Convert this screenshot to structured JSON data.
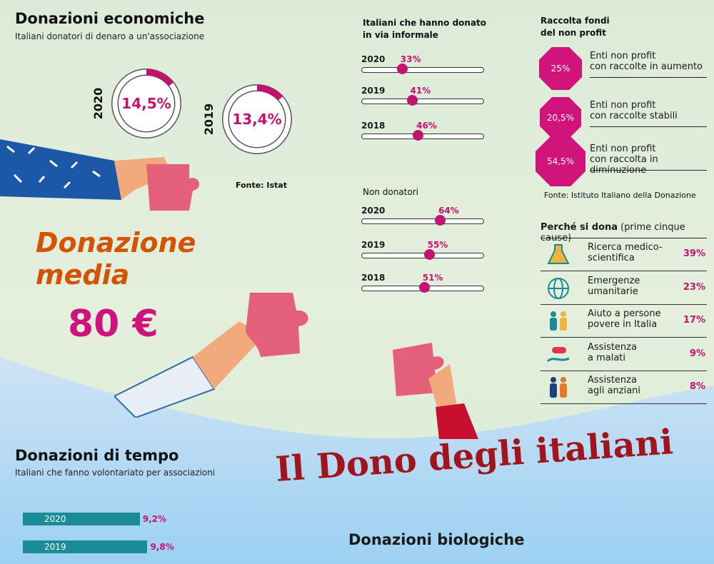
{
  "headline": "Il Dono degli italiani",
  "economic": {
    "title": "Donazioni economiche",
    "subtitle": "Italiani donatori di denaro a un'associazione",
    "source": "Fonte: Istat"
  },
  "average_donation": {
    "label_line1": "Donazione",
    "label_line2": "media",
    "value": "80 €"
  },
  "time": {
    "title": "Donazioni di tempo",
    "subtitle": "Italiani che fanno volontariato per associazioni"
  },
  "bio": {
    "title": "Donazioni biologiche"
  },
  "informal": {
    "title_line1": "Italiani che hanno donato",
    "title_line2": "in via informale",
    "non_donors_title": "Non donatori"
  },
  "nonprofit": {
    "title_line1": "Raccolta fondi",
    "title_line2": "del non profit",
    "source": "Fonte: Istituto Italiano della Donazione"
  },
  "causes": {
    "title_bold": "Perché si dona",
    "title_rest": " (prime cinque cause)"
  },
  "chart_data": [
    {
      "type": "pie",
      "title": "Donazioni economiche",
      "categories": [
        "2020",
        "2019"
      ],
      "values": [
        14.5,
        13.4
      ],
      "value_labels": [
        "14,5%",
        "13,4%"
      ],
      "unit": "%"
    },
    {
      "type": "scatter",
      "title": "Italiani che hanno donato in via informale",
      "categories": [
        "2020",
        "2019",
        "2018"
      ],
      "values": [
        33,
        41,
        46
      ],
      "value_labels": [
        "33%",
        "41%",
        "46%"
      ],
      "ylim": [
        0,
        100
      ]
    },
    {
      "type": "scatter",
      "title": "Non donatori",
      "categories": [
        "2020",
        "2019",
        "2018"
      ],
      "values": [
        64,
        55,
        51
      ],
      "value_labels": [
        "64%",
        "55%",
        "51%"
      ],
      "ylim": [
        0,
        100
      ]
    },
    {
      "type": "bar",
      "title": "Raccolta fondi del non profit",
      "categories": [
        "Enti non profit con raccolte in aumento",
        "Enti non profit con raccolte stabili",
        "Enti non profit con raccolta in diminuzione"
      ],
      "label_line1": [
        "Enti non profit",
        "Enti non profit",
        "Enti non profit"
      ],
      "label_line2": [
        "con raccolte in aumento",
        "con raccolte stabili",
        "con raccolta in diminuzione"
      ],
      "values": [
        25,
        20.5,
        54.5
      ],
      "value_labels": [
        "25%",
        "20,5%",
        "54,5%"
      ]
    },
    {
      "type": "table",
      "title": "Perché si dona (prime cinque cause)",
      "categories": [
        "Ricerca medico-scientifica",
        "Emergenze umanitarie",
        "Aiuto a persone povere in Italia",
        "Assistenza a malati",
        "Assistenza agli anziani"
      ],
      "label_line1": [
        "Ricerca medico-",
        "Emergenze",
        "Aiuto a persone",
        "Assistenza",
        "Assistenza"
      ],
      "label_line2": [
        "scientifica",
        "umanitarie",
        "povere in Italia",
        "a malati",
        "agli anziani"
      ],
      "icons": [
        "flask-icon",
        "globe-icon",
        "family-icon",
        "pill-hand-icon",
        "elderly-icon"
      ],
      "values": [
        39,
        23,
        17,
        9,
        8
      ],
      "value_labels": [
        "39%",
        "23%",
        "17%",
        "9%",
        "8%"
      ]
    },
    {
      "type": "bar",
      "title": "Donazioni di tempo",
      "categories": [
        "2020",
        "2019"
      ],
      "values": [
        9.2,
        9.8
      ],
      "value_labels": [
        "9,2%",
        "9,8%"
      ]
    }
  ],
  "colors": {
    "accent": "#c2136e",
    "teal": "#1b8b96",
    "headline": "#a0141e",
    "orange": "#d35400"
  }
}
